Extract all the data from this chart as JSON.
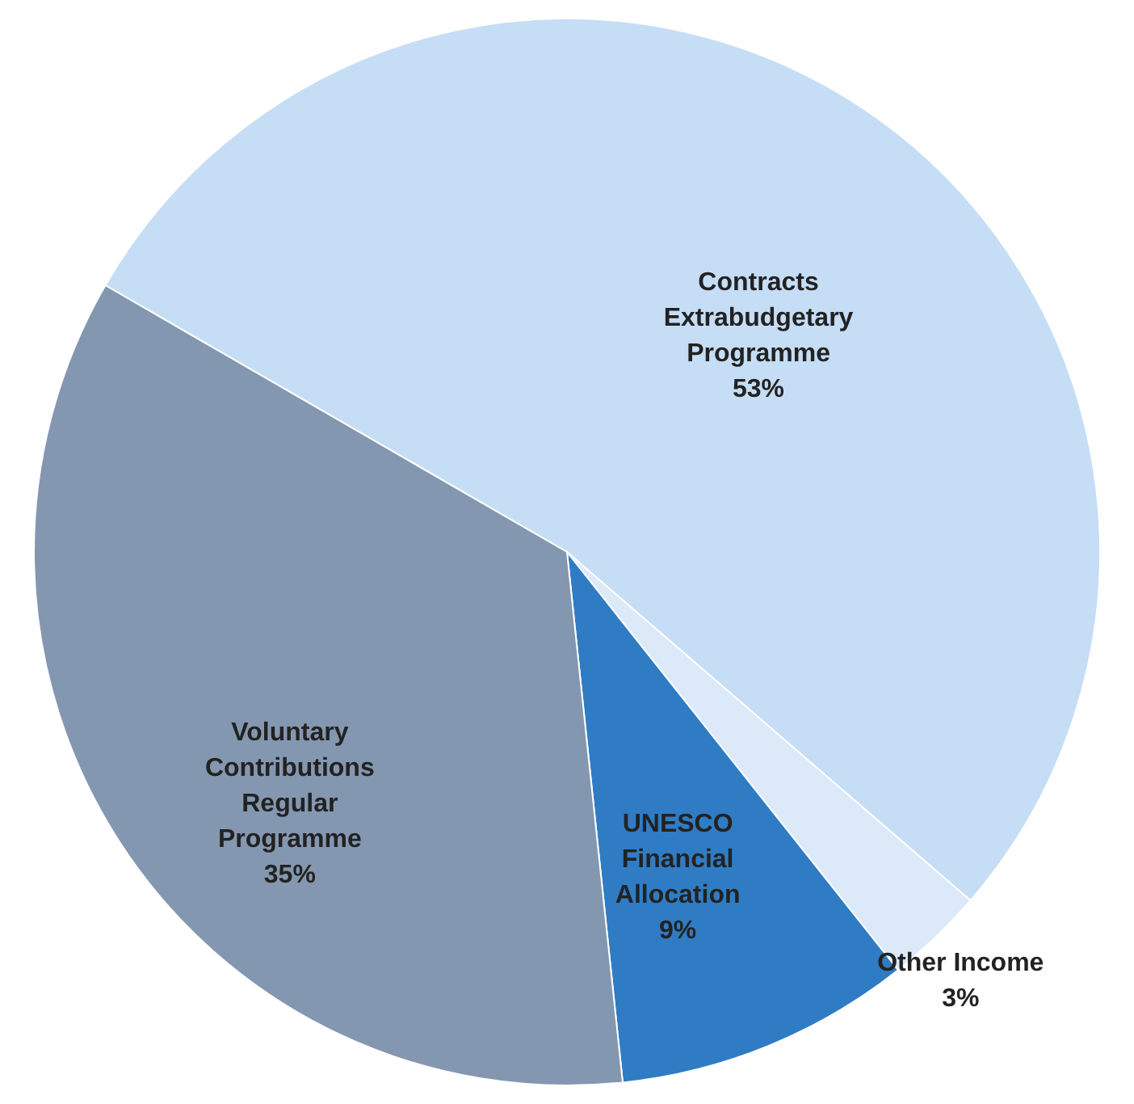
{
  "chart_data": {
    "type": "pie",
    "categories": [
      "Contracts Extrabudgetary Programme",
      "Other Income",
      "UNESCO Financial Allocation",
      "Voluntary Contributions Regular Programme"
    ],
    "values": [
      53,
      3,
      9,
      35
    ],
    "value_labels": [
      "53%",
      "3%",
      "9%",
      "35%"
    ],
    "colors": [
      "#c6ddf6",
      "#dce9f8",
      "#2f7cc4",
      "#8497b0"
    ]
  }
}
